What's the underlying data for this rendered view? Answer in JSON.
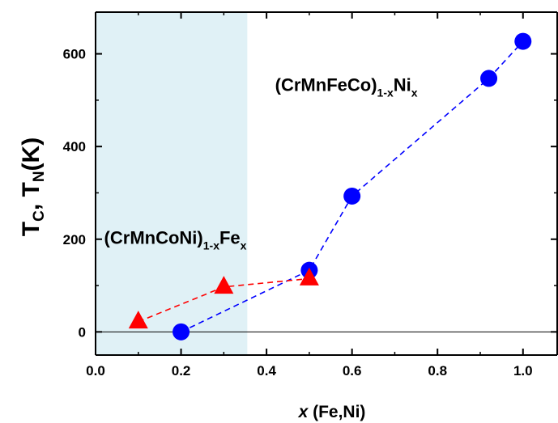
{
  "chart_data": {
    "type": "scatter",
    "xlim": [
      0.0,
      1.08
    ],
    "ylim": [
      -50,
      690
    ],
    "x_ticks": [
      0.0,
      0.2,
      0.4,
      0.6,
      0.8,
      1.0
    ],
    "x_tick_labels": [
      "0.0",
      "0.2",
      "0.4",
      "0.6",
      "0.8",
      "1.0"
    ],
    "y_ticks": [
      0,
      200,
      400,
      600
    ],
    "y_tick_labels": [
      "0",
      "200",
      "400",
      "600"
    ],
    "xlabel": {
      "italic": "x",
      "rest": " (Fe,Ni)"
    },
    "ylabel": {
      "t1": "T",
      "s1": "C",
      "mid": ", T",
      "s2": "N",
      "end": "(K)"
    },
    "shaded_region": {
      "x_from": 0.0,
      "x_to": 0.355,
      "color": "#e0f1f6"
    },
    "zero_line": true,
    "series": [
      {
        "marker": "circle",
        "color": "#0000ff",
        "line_style": "dashed",
        "points": [
          {
            "x": 0.2,
            "y": 0
          },
          {
            "x": 0.5,
            "y": 133
          },
          {
            "x": 0.6,
            "y": 293
          },
          {
            "x": 0.92,
            "y": 547
          },
          {
            "x": 1.0,
            "y": 627
          }
        ]
      },
      {
        "marker": "triangle",
        "color": "#ff0000",
        "line_style": "dashed",
        "points": [
          {
            "x": 0.1,
            "y": 22
          },
          {
            "x": 0.3,
            "y": 97
          },
          {
            "x": 0.5,
            "y": 115
          }
        ]
      }
    ],
    "annotations": [
      {
        "base": "(CrMnFeCo)",
        "sub": "1-x",
        "tail": "Ni",
        "sub2": "x",
        "x": 0.42,
        "y": 520
      },
      {
        "base": "(CrMnCoNi)",
        "sub": "1-x",
        "tail": "Fe",
        "sub2": "x",
        "x": 0.02,
        "y": 190
      }
    ]
  }
}
